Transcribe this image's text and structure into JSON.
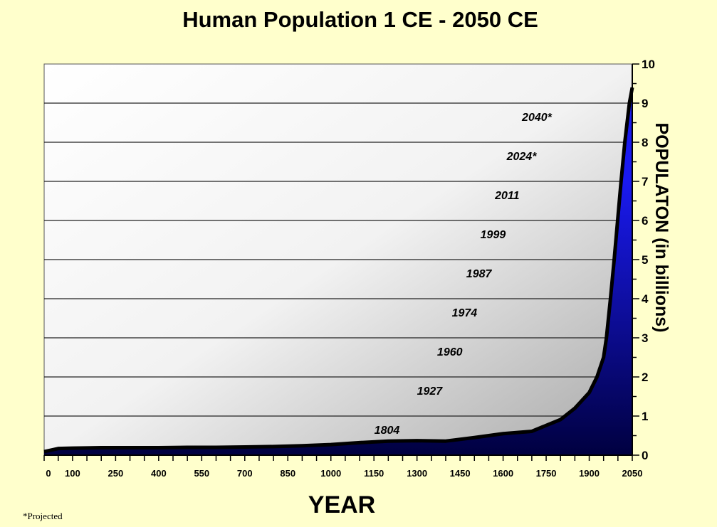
{
  "chart_data": {
    "type": "area",
    "title": "Human Population 1 CE - 2050 CE",
    "xlabel": "YEAR",
    "ylabel": "POPULATON (in billions)",
    "footnote": "*Projected",
    "xlim": [
      1,
      2050
    ],
    "ylim": [
      0,
      10
    ],
    "x_ticks": [
      0,
      100,
      250,
      400,
      550,
      700,
      850,
      1000,
      1150,
      1300,
      1450,
      1600,
      1750,
      1900,
      2050
    ],
    "y_ticks": [
      0,
      1,
      2,
      3,
      4,
      5,
      6,
      7,
      8,
      9,
      10
    ],
    "grid": true,
    "series": [
      {
        "x": [
          1,
          50,
          100,
          200,
          300,
          400,
          500,
          600,
          700,
          800,
          900,
          1000,
          1100,
          1200,
          1300,
          1400,
          1500,
          1600,
          1700,
          1750,
          1800,
          1850,
          1900,
          1927,
          1950,
          1960,
          1974,
          1987,
          1999,
          2011,
          2024,
          2040,
          2050
        ],
        "values": [
          0.09,
          0.17,
          0.18,
          0.19,
          0.19,
          0.19,
          0.2,
          0.2,
          0.21,
          0.22,
          0.24,
          0.27,
          0.32,
          0.36,
          0.37,
          0.36,
          0.45,
          0.55,
          0.61,
          0.76,
          0.91,
          1.2,
          1.6,
          2.0,
          2.5,
          3.0,
          4.0,
          5.0,
          6.0,
          7.0,
          8.0,
          9.0,
          9.4
        ]
      }
    ],
    "milestones": [
      {
        "label": "1804",
        "value": 1
      },
      {
        "label": "1927",
        "value": 2
      },
      {
        "label": "1960",
        "value": 3
      },
      {
        "label": "1974",
        "value": 4
      },
      {
        "label": "1987",
        "value": 5
      },
      {
        "label": "1999",
        "value": 6
      },
      {
        "label": "2011",
        "value": 7
      },
      {
        "label": "2024*",
        "value": 8
      },
      {
        "label": "2040*",
        "value": 9
      }
    ],
    "colors": {
      "background": "#ffffcc",
      "fill_dark": "#000040",
      "fill_light": "#1a1af0",
      "line": "#000000"
    }
  }
}
